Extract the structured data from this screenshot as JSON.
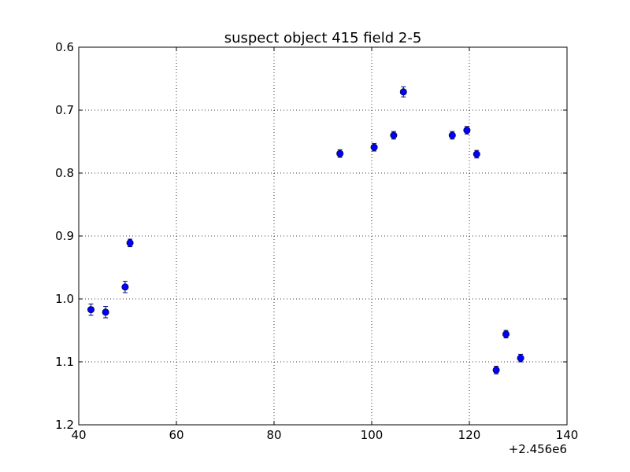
{
  "chart_data": {
    "type": "scatter",
    "title": "suspect object 415 field 2-5",
    "xlabel": "",
    "ylabel": "",
    "x_offset_label": "+2.456e6",
    "xlim": [
      40,
      140
    ],
    "ylim": [
      0.6,
      1.2
    ],
    "y_inverted": true,
    "x_ticks": [
      40,
      60,
      80,
      100,
      120,
      140
    ],
    "x_tick_labels": [
      "40",
      "60",
      "80",
      "100",
      "120",
      "140"
    ],
    "y_ticks": [
      0.6,
      0.7,
      0.8,
      0.9,
      1.0,
      1.1,
      1.2
    ],
    "y_tick_labels": [
      "0.6",
      "0.7",
      "0.8",
      "0.9",
      "1.0",
      "1.1",
      "1.2"
    ],
    "grid": true,
    "marker_color": "#0000ff",
    "errorbar_color": "#000080",
    "points": [
      {
        "x": 42.5,
        "y": 1.017,
        "err": 0.009
      },
      {
        "x": 45.5,
        "y": 1.021,
        "err": 0.009
      },
      {
        "x": 49.5,
        "y": 0.981,
        "err": 0.009
      },
      {
        "x": 50.5,
        "y": 0.911,
        "err": 0.006
      },
      {
        "x": 93.5,
        "y": 0.769,
        "err": 0.006
      },
      {
        "x": 100.5,
        "y": 0.759,
        "err": 0.006
      },
      {
        "x": 104.5,
        "y": 0.74,
        "err": 0.006
      },
      {
        "x": 106.5,
        "y": 0.671,
        "err": 0.008
      },
      {
        "x": 116.5,
        "y": 0.74,
        "err": 0.006
      },
      {
        "x": 119.5,
        "y": 0.732,
        "err": 0.006
      },
      {
        "x": 121.5,
        "y": 0.77,
        "err": 0.006
      },
      {
        "x": 125.5,
        "y": 1.113,
        "err": 0.006
      },
      {
        "x": 127.5,
        "y": 1.056,
        "err": 0.006
      },
      {
        "x": 130.5,
        "y": 1.094,
        "err": 0.006
      }
    ]
  }
}
